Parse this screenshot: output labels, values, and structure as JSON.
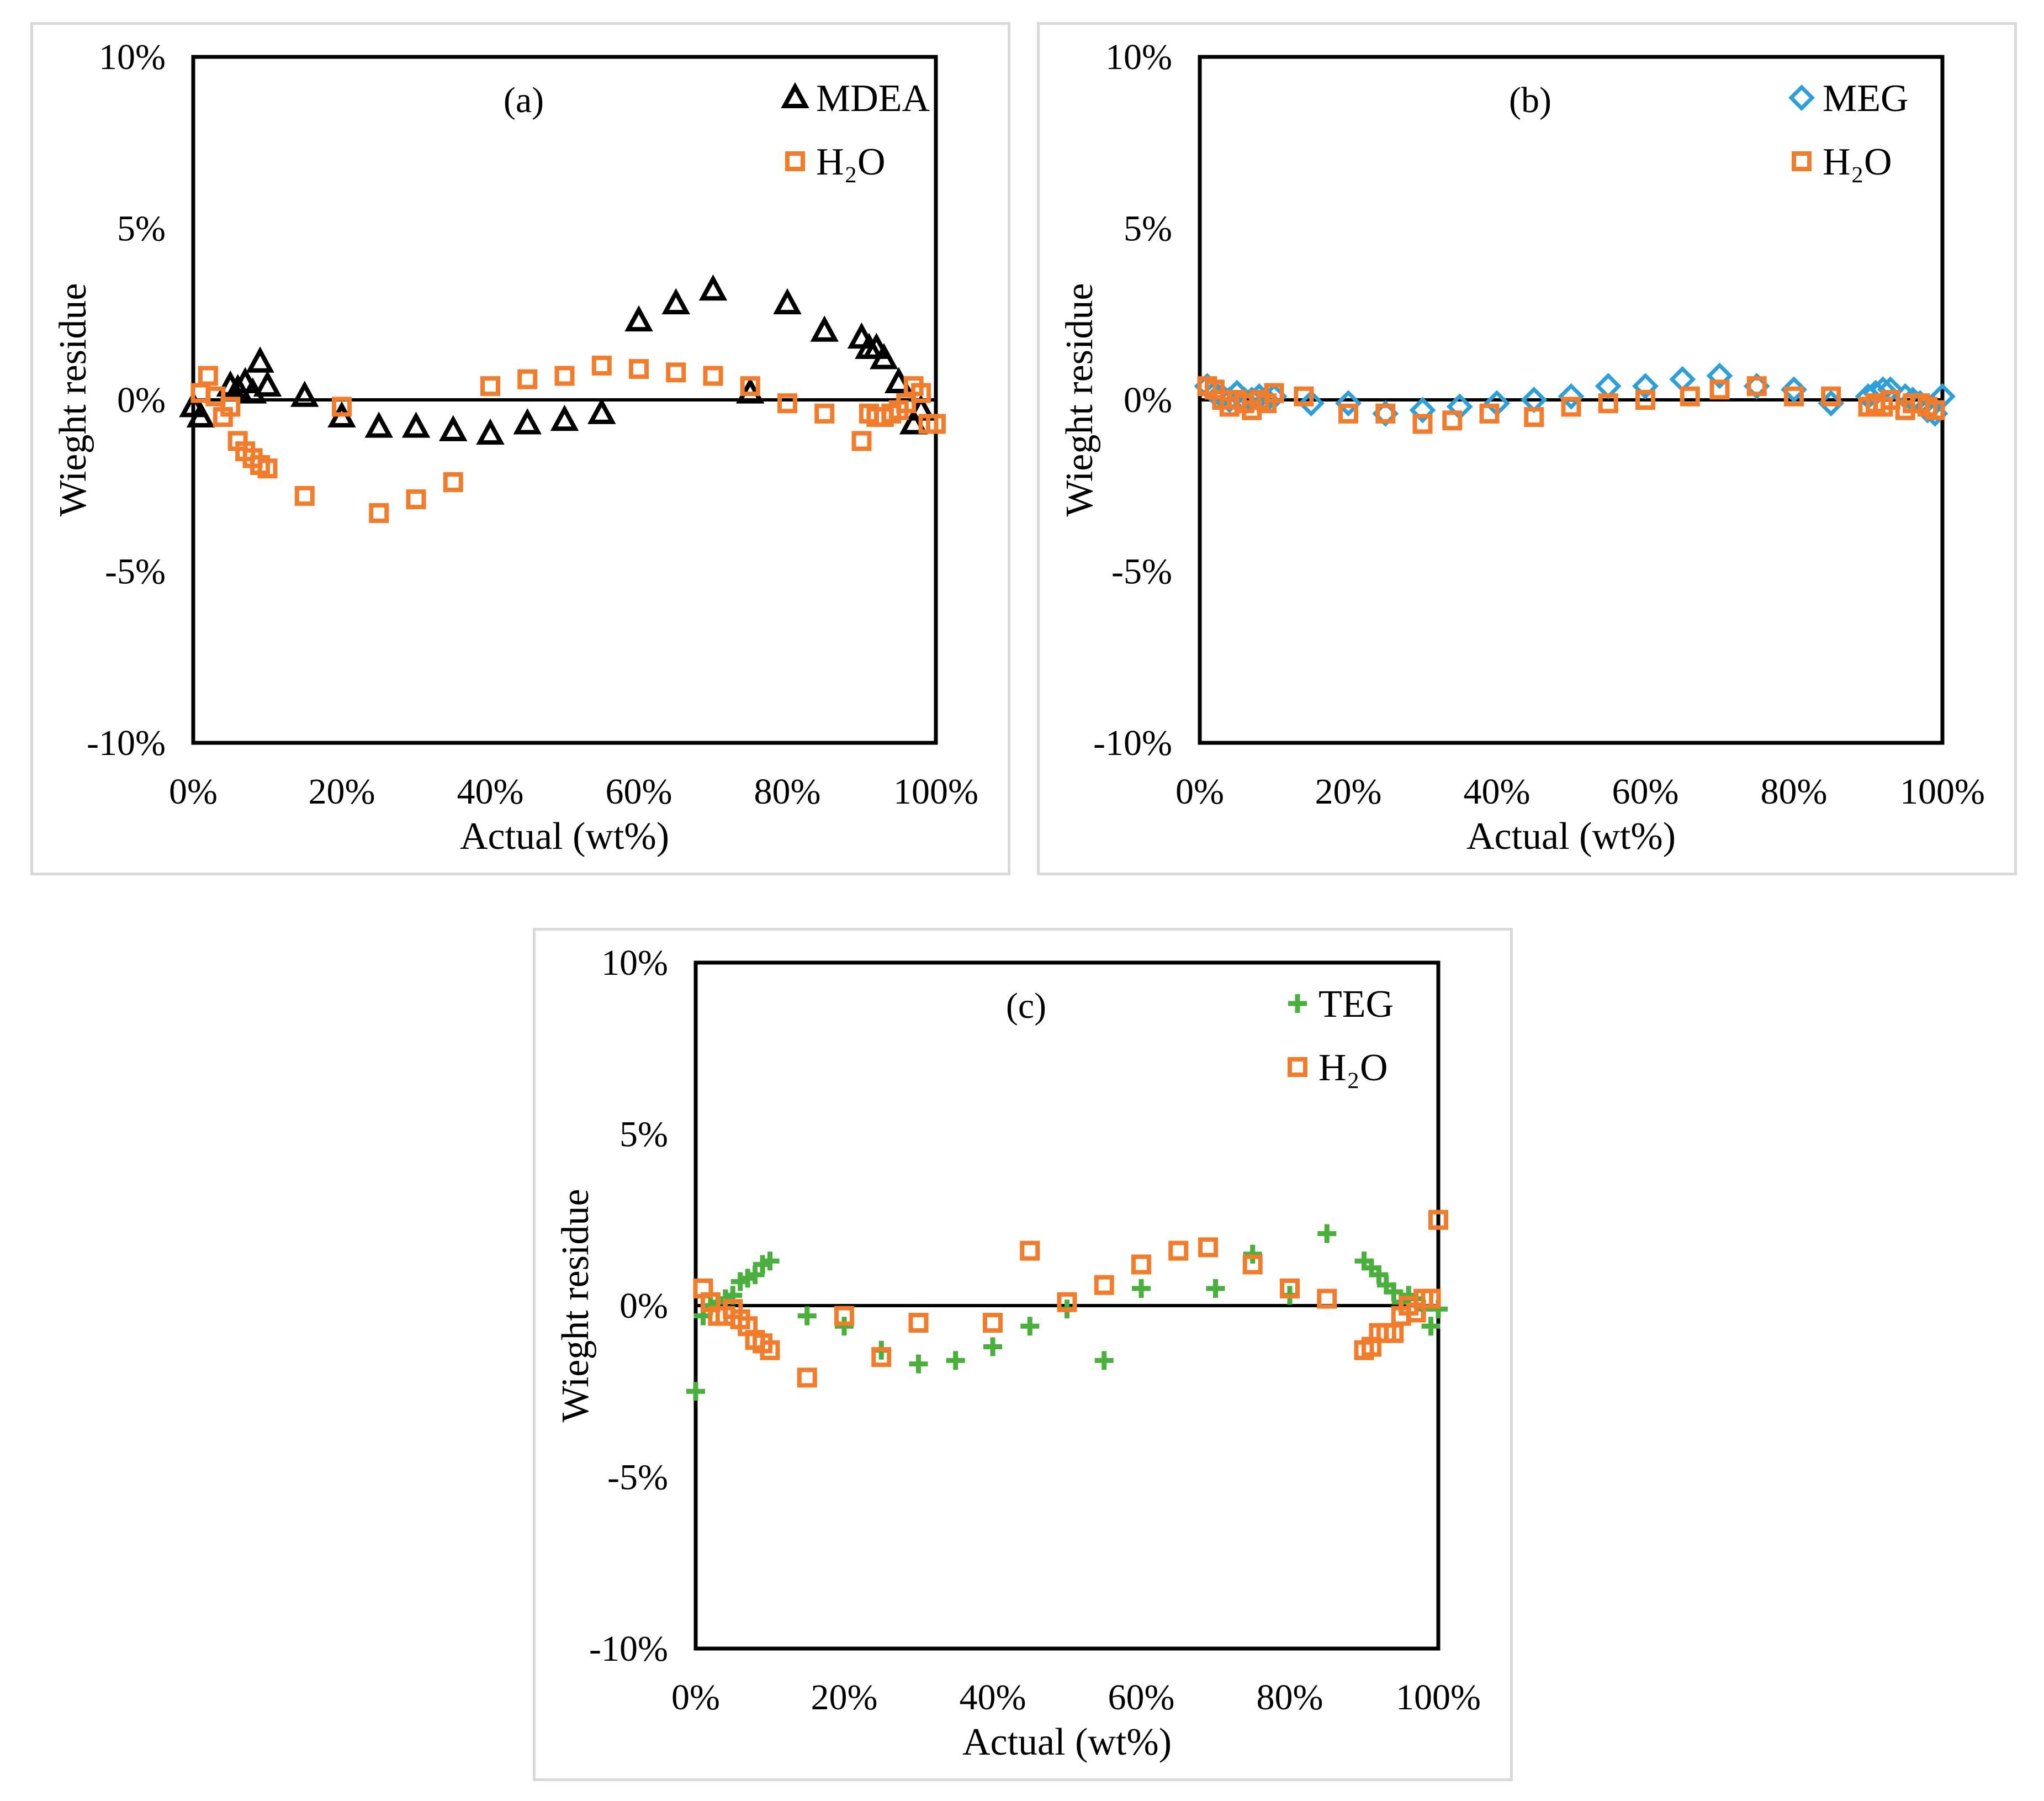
{
  "colors": {
    "mdea": "#000000",
    "meg": "#2e9fd8",
    "teg": "#4aaf3c",
    "water": "#f07c2c",
    "axes": "#000000",
    "frame": "#d9d9d9"
  },
  "chart_data": [
    {
      "type": "scatter",
      "panel_label": "(a)",
      "xlabel": "Actual (wt%)",
      "ylabel": "Wieght residue",
      "xlim": [
        0,
        100
      ],
      "ylim": [
        -10,
        10
      ],
      "xticks": [
        "0%",
        "20%",
        "40%",
        "60%",
        "80%",
        "100%"
      ],
      "yticks": [
        "10%",
        "5%",
        "0%",
        "-5%",
        "-10%"
      ],
      "zero_line": true,
      "legend": {
        "position": "top-right",
        "entries": [
          "MDEA",
          "H₂O"
        ]
      },
      "series": [
        {
          "name": "MDEA",
          "marker": "triangle",
          "color": "#000000",
          "x": [
            0,
            1,
            5,
            6,
            7,
            8,
            9,
            10,
            15,
            20,
            25,
            30,
            35,
            40,
            45,
            50,
            55,
            60,
            65,
            70,
            75,
            80,
            85,
            90,
            91,
            92,
            93,
            95,
            97,
            98
          ],
          "y": [
            -0.2,
            -0.5,
            0.4,
            0.3,
            0.5,
            0.2,
            1.1,
            0.4,
            0.1,
            -0.5,
            -0.8,
            -0.8,
            -0.9,
            -1.0,
            -0.7,
            -0.6,
            -0.4,
            2.3,
            2.8,
            3.2,
            0.2,
            2.8,
            2.0,
            1.8,
            1.5,
            1.5,
            1.2,
            0.5,
            -0.7,
            -0.3
          ]
        },
        {
          "name": "H₂O",
          "marker": "square",
          "color": "#f07c2c",
          "x": [
            1,
            2,
            3,
            4,
            5,
            6,
            7,
            8,
            9,
            10,
            15,
            20,
            25,
            30,
            35,
            40,
            45,
            50,
            55,
            60,
            65,
            70,
            75,
            80,
            85,
            90,
            91,
            92,
            93,
            94,
            95,
            96,
            97,
            98,
            99,
            100
          ],
          "y": [
            0.2,
            0.7,
            0.1,
            -0.5,
            -0.2,
            -1.2,
            -1.5,
            -1.7,
            -1.9,
            -2.0,
            -2.8,
            -0.2,
            -3.3,
            -2.9,
            -2.4,
            0.4,
            0.6,
            0.7,
            1.0,
            0.9,
            0.8,
            0.7,
            0.4,
            -0.1,
            -0.4,
            -1.2,
            -0.4,
            -0.5,
            -0.5,
            -0.4,
            -0.3,
            -0.1,
            0.4,
            0.2,
            -0.7,
            -0.7
          ]
        }
      ]
    },
    {
      "type": "scatter",
      "panel_label": "(b)",
      "xlabel": "Actual (wt%)",
      "ylabel": "Wieght residue",
      "xlim": [
        0,
        100
      ],
      "ylim": [
        -10,
        10
      ],
      "xticks": [
        "0%",
        "20%",
        "40%",
        "60%",
        "80%",
        "100%"
      ],
      "yticks": [
        "10%",
        "5%",
        "0%",
        "-5%",
        "-10%"
      ],
      "zero_line": true,
      "legend": {
        "position": "top-right",
        "entries": [
          "MEG",
          "H₂O"
        ]
      },
      "series": [
        {
          "name": "MEG",
          "marker": "diamond",
          "color": "#2e9fd8",
          "x": [
            1,
            2,
            3,
            4,
            5,
            6,
            7,
            8,
            9,
            10,
            15,
            20,
            25,
            30,
            35,
            40,
            45,
            50,
            55,
            60,
            65,
            70,
            75,
            80,
            85,
            90,
            91,
            92,
            93,
            95,
            96,
            97,
            98,
            99,
            100
          ],
          "y": [
            0.4,
            0.2,
            0.1,
            0.0,
            0.2,
            0.0,
            0.0,
            0.1,
            0.0,
            0.1,
            -0.1,
            -0.1,
            -0.4,
            -0.3,
            -0.2,
            -0.1,
            0.0,
            0.1,
            0.4,
            0.4,
            0.6,
            0.7,
            0.4,
            0.3,
            -0.1,
            0.1,
            0.2,
            0.3,
            0.3,
            0.1,
            0.0,
            -0.1,
            -0.3,
            -0.4,
            0.1
          ]
        },
        {
          "name": "H₂O",
          "marker": "square",
          "color": "#f07c2c",
          "x": [
            1,
            2,
            3,
            4,
            5,
            6,
            7,
            8,
            9,
            10,
            14,
            20,
            25,
            30,
            34,
            39,
            45,
            50,
            55,
            60,
            66,
            70,
            75,
            80,
            85,
            90,
            91,
            92,
            93,
            95,
            96,
            97,
            98,
            99
          ],
          "y": [
            0.4,
            0.3,
            0.0,
            -0.2,
            0.0,
            -0.1,
            -0.3,
            0.0,
            -0.1,
            0.2,
            0.1,
            -0.4,
            -0.4,
            -0.7,
            -0.6,
            -0.4,
            -0.5,
            -0.2,
            -0.1,
            0.0,
            0.1,
            0.3,
            0.4,
            0.1,
            0.1,
            -0.2,
            -0.1,
            -0.2,
            0.0,
            -0.3,
            -0.1,
            -0.1,
            -0.2,
            -0.3
          ]
        }
      ]
    },
    {
      "type": "scatter",
      "panel_label": "(c)",
      "xlabel": "Actual (wt%)",
      "ylabel": "Wieght residue",
      "xlim": [
        0,
        100
      ],
      "ylim": [
        -10,
        10
      ],
      "xticks": [
        "0%",
        "20%",
        "40%",
        "60%",
        "80%",
        "100%"
      ],
      "yticks": [
        "10%",
        "5%",
        "0%",
        "-5%",
        "-10%"
      ],
      "zero_line": true,
      "legend": {
        "position": "top-right",
        "entries": [
          "TEG",
          "H₂O"
        ]
      },
      "series": [
        {
          "name": "TEG",
          "marker": "plus",
          "color": "#4aaf3c",
          "x": [
            0,
            1,
            2,
            3,
            4,
            5,
            6,
            7,
            8,
            9,
            10,
            15,
            20,
            25,
            30,
            35,
            40,
            45,
            50,
            55,
            60,
            70,
            75,
            80,
            85,
            90,
            91,
            92,
            93,
            94,
            95,
            96,
            97,
            98,
            99,
            100
          ],
          "y": [
            -2.5,
            -0.3,
            0.0,
            0.1,
            0.2,
            0.3,
            0.7,
            0.8,
            0.9,
            1.2,
            1.3,
            -0.3,
            -0.6,
            -1.3,
            -1.7,
            -1.6,
            -1.2,
            -0.6,
            -0.1,
            -1.6,
            0.5,
            0.5,
            1.5,
            0.3,
            2.1,
            1.3,
            1.1,
            0.9,
            0.6,
            0.4,
            0.1,
            0.3,
            0.2,
            -0.1,
            -0.6,
            -0.1
          ]
        },
        {
          "name": "H₂O",
          "marker": "square",
          "color": "#f07c2c",
          "x": [
            1,
            2,
            3,
            4,
            5,
            6,
            7,
            8,
            9,
            10,
            15,
            20,
            25,
            30,
            40,
            45,
            50,
            55,
            60,
            65,
            69,
            75,
            80,
            85,
            90,
            91,
            92,
            93,
            94,
            95,
            96,
            97,
            98,
            99,
            100
          ],
          "y": [
            0.5,
            0.1,
            -0.3,
            -0.3,
            -0.1,
            -0.4,
            -0.6,
            -1.0,
            -1.1,
            -1.3,
            -2.1,
            -0.3,
            -1.5,
            -0.5,
            -0.5,
            1.6,
            0.1,
            0.6,
            1.2,
            1.6,
            1.7,
            1.2,
            0.5,
            0.2,
            -1.3,
            -1.2,
            -0.8,
            -0.8,
            -0.8,
            -0.3,
            0.0,
            -0.2,
            0.2,
            0.2,
            2.5
          ]
        }
      ]
    }
  ]
}
